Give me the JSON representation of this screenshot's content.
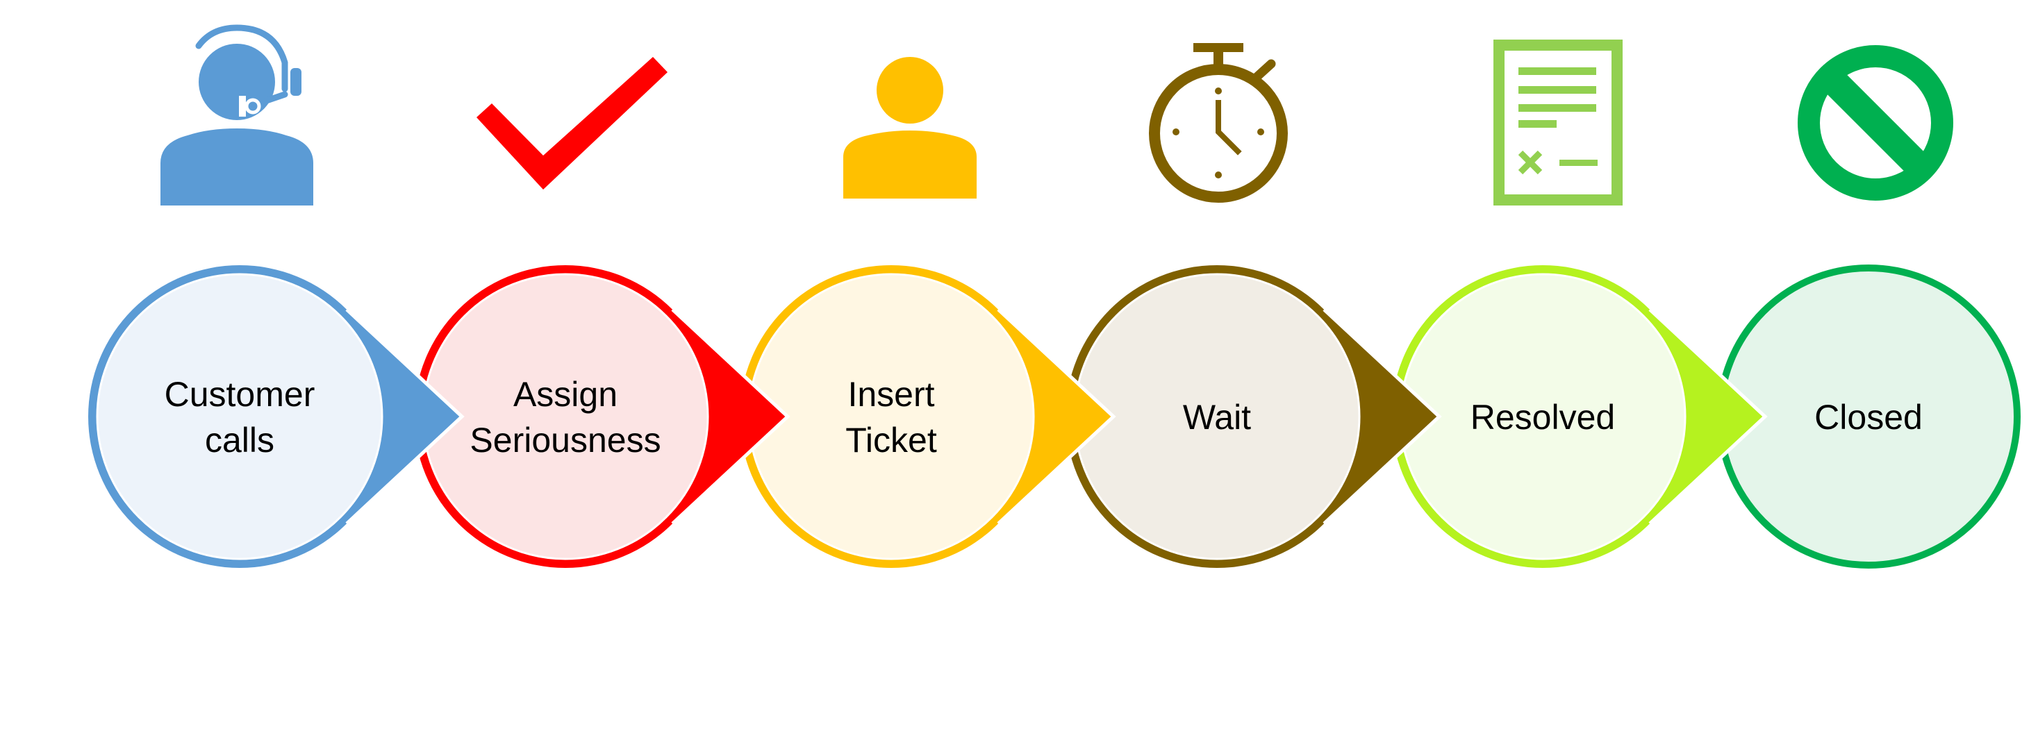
{
  "steps": [
    {
      "lines": [
        "Customer",
        "calls"
      ],
      "stroke": "#5B9BD5",
      "fill": "#EDF3FA",
      "icon": "headset-agent-icon"
    },
    {
      "lines": [
        "Assign",
        "Seriousness"
      ],
      "stroke": "#FF0000",
      "fill": "#FCE4E4",
      "icon": "checkmark-icon"
    },
    {
      "lines": [
        "Insert",
        "Ticket"
      ],
      "stroke": "#FFC000",
      "fill": "#FFF7E3",
      "icon": "person-icon"
    },
    {
      "lines": [
        "Wait"
      ],
      "stroke": "#7F6000",
      "fill": "#F1EDE5",
      "icon": "stopwatch-icon"
    },
    {
      "lines": [
        "Resolved"
      ],
      "stroke": "#B5F21F",
      "fill": "#F3FCE8",
      "icon": "checklist-document-icon"
    },
    {
      "lines": [
        "Closed"
      ],
      "stroke": "#00B050",
      "fill": "#E4F5EA",
      "icon": "prohibited-icon"
    }
  ],
  "icon_colors": {
    "headset": "#5B9BD5",
    "check": "#FF0000",
    "person": "#FFC000",
    "stopwatch": "#7F6000",
    "document": "#92D050",
    "prohibited": "#00B050"
  }
}
